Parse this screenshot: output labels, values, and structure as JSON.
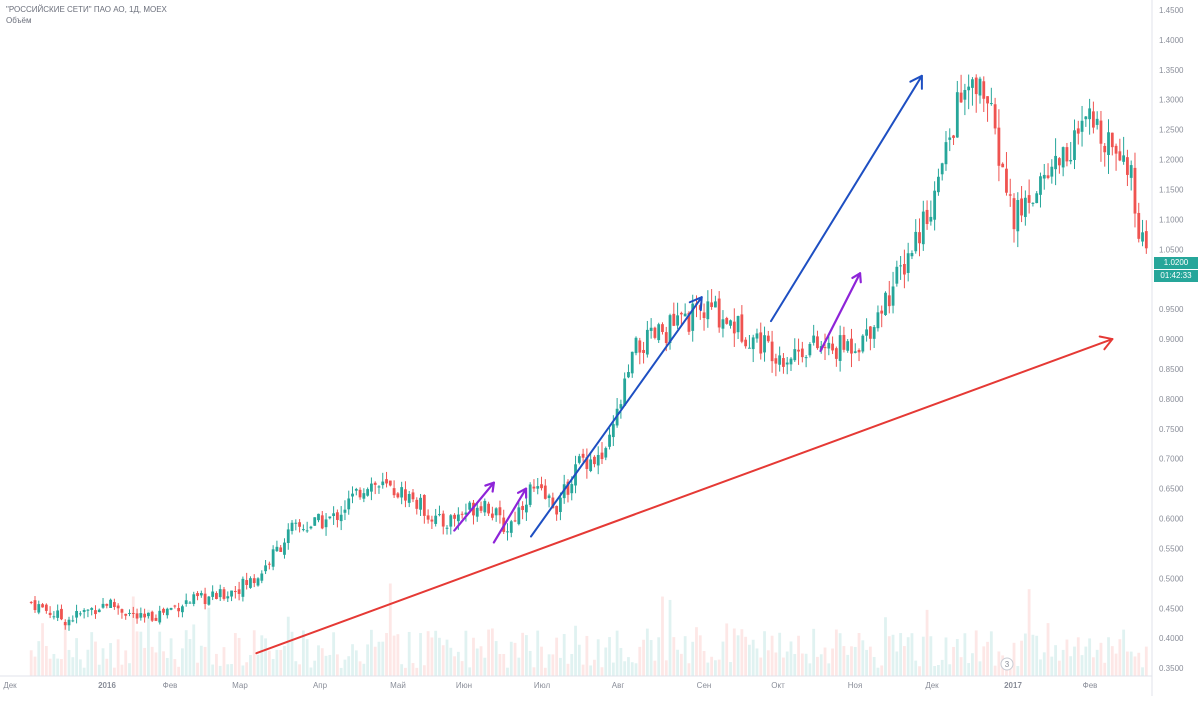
{
  "header": {
    "symbol_line": "\"РОССИЙСКИЕ СЕТИ\" ПАО АО, 1Д, MOEX",
    "volume_label": "Объём"
  },
  "last_price": "1.0200",
  "countdown": "01:42:33",
  "scroll_marker": "3",
  "colors": {
    "up": "#26a69a",
    "down": "#ef5350",
    "trend_red": "#e53935",
    "arrow_blue": "#1e4fc2",
    "arrow_purple": "#8e24d8",
    "axis_text": "#8a8e99"
  },
  "chart_data": {
    "type": "line",
    "title": "\"РОССИЙСКИЕ СЕТИ\" ПАО АО, 1Д, MOEX",
    "xlabel": "",
    "ylabel": "",
    "ylim": [
      0.34,
      1.45
    ],
    "grid": false,
    "x_ticks": [
      "Дек",
      "2016",
      "Фев",
      "Мар",
      "Апр",
      "Май",
      "Июн",
      "Июл",
      "Авг",
      "Сен",
      "Окт",
      "Ноя",
      "Дек",
      "2017",
      "Фев"
    ],
    "y_ticks": [
      "1.4500",
      "1.4000",
      "1.3500",
      "1.3000",
      "1.2500",
      "1.2000",
      "1.1500",
      "1.1000",
      "1.0500",
      "1.0000",
      "0.9500",
      "0.9000",
      "0.8500",
      "0.8000",
      "0.7500",
      "0.7000",
      "0.6500",
      "0.6000",
      "0.5500",
      "0.5000",
      "0.4500",
      "0.4000",
      "0.3500"
    ],
    "series": [
      {
        "x": [
          "2015-12-01",
          "2015-12-15",
          "2016-01-01",
          "2016-01-15",
          "2016-02-01",
          "2016-02-15",
          "2016-03-01",
          "2016-03-15",
          "2016-04-01",
          "2016-04-15",
          "2016-05-01",
          "2016-05-15",
          "2016-06-01",
          "2016-06-10",
          "2016-06-20",
          "2016-07-01",
          "2016-07-10",
          "2016-07-20",
          "2016-08-01",
          "2016-08-15",
          "2016-09-01",
          "2016-09-15",
          "2016-10-01",
          "2016-10-10",
          "2016-10-20",
          "2016-11-01",
          "2016-11-15",
          "2016-12-01",
          "2016-12-10",
          "2016-12-20",
          "2017-01-01",
          "2017-01-15",
          "2017-02-01",
          "2017-02-15",
          "2017-02-24"
        ],
        "y": [
          0.46,
          0.43,
          0.46,
          0.43,
          0.46,
          0.47,
          0.5,
          0.58,
          0.6,
          0.66,
          0.64,
          0.59,
          0.63,
          0.58,
          0.65,
          0.62,
          0.7,
          0.7,
          0.88,
          0.92,
          0.95,
          0.91,
          0.87,
          0.89,
          0.88,
          0.9,
          1.0,
          1.15,
          1.3,
          1.32,
          1.1,
          1.18,
          1.26,
          1.22,
          1.02
        ]
      }
    ],
    "annotations": [
      {
        "type": "trendline",
        "color": "red",
        "from": [
          "2016-03-01",
          0.375
        ],
        "to": [
          "2017-02-10",
          0.9
        ]
      },
      {
        "type": "arrow",
        "color": "blue",
        "from": [
          "2016-06-20",
          0.57
        ],
        "to": [
          "2016-08-28",
          0.97
        ]
      },
      {
        "type": "arrow",
        "color": "blue",
        "from": [
          "2016-09-25",
          0.93
        ],
        "to": [
          "2016-11-25",
          1.34
        ]
      },
      {
        "type": "arrow",
        "color": "purple",
        "from": [
          "2016-05-20",
          0.58
        ],
        "to": [
          "2016-06-05",
          0.66
        ]
      },
      {
        "type": "arrow",
        "color": "purple",
        "from": [
          "2016-06-05",
          0.56
        ],
        "to": [
          "2016-06-18",
          0.65
        ]
      },
      {
        "type": "arrow",
        "color": "purple",
        "from": [
          "2016-10-15",
          0.88
        ],
        "to": [
          "2016-10-31",
          1.01
        ]
      }
    ]
  }
}
